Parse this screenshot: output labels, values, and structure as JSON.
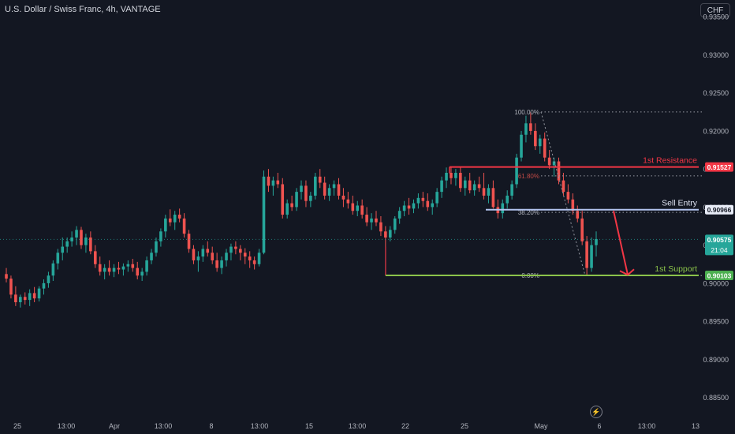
{
  "header": {
    "title": "U.S. Dollar / Swiss Franc, 4h, VANTAGE",
    "currency_button": "CHF"
  },
  "icons": {
    "replay": "lightning-icon"
  },
  "colors": {
    "background": "#131722",
    "up": "#26a69a",
    "down": "#ef5350",
    "resistance": "#f23645",
    "entry": "#b2c3ee",
    "support": "#8bc34a",
    "arrow": "#f23645"
  },
  "chart_data": {
    "type": "candlestick",
    "title": "U.S. Dollar / Swiss Franc, 4h, VANTAGE",
    "xlabel": "",
    "ylabel": "",
    "ylim": [
      0.8833,
      0.9372
    ],
    "y_ticks": [
      "0.93500",
      "0.93000",
      "0.92500",
      "0.92000",
      "0.91500",
      "0.91000",
      "0.90500",
      "0.90000",
      "0.89500",
      "0.89000",
      "0.88500"
    ],
    "x_ticks": [
      "25",
      "13:00",
      "Apr",
      "13:00",
      "8",
      "13:00",
      "15",
      "13:00",
      "22",
      "25",
      "May",
      "6",
      "13:00",
      "13"
    ],
    "grid": false,
    "levels": [
      {
        "label": "1st Resistance",
        "price": 0.91527,
        "price_label": "0.91527"
      },
      {
        "label": "Sell Entry",
        "price": 0.90966,
        "price_label": "0.90966"
      },
      {
        "label": "1st Support",
        "price": 0.90103,
        "price_label": "0.90103"
      }
    ],
    "current_price": {
      "price": 0.90575,
      "price_label": "0.90575",
      "countdown": "21:04"
    },
    "fibonacci": [
      {
        "label": "100.00%",
        "price": 0.9225
      },
      {
        "label": "61.80%",
        "price": 0.9141
      },
      {
        "label": "38.20%",
        "price": 0.9093
      },
      {
        "label": "0.00%",
        "price": 0.901
      }
    ],
    "projection": {
      "from_price": 0.9095,
      "to_price": 0.9011
    },
    "candles": [
      [
        0.9012,
        0.902,
        0.9001,
        0.9006
      ],
      [
        0.9006,
        0.901,
        0.898,
        0.8985
      ],
      [
        0.8985,
        0.8996,
        0.897,
        0.8975
      ],
      [
        0.8975,
        0.8985,
        0.8968,
        0.8982
      ],
      [
        0.8982,
        0.8988,
        0.8972,
        0.8978
      ],
      [
        0.8978,
        0.8992,
        0.897,
        0.8987
      ],
      [
        0.8987,
        0.8995,
        0.8975,
        0.898
      ],
      [
        0.898,
        0.8996,
        0.8976,
        0.8993
      ],
      [
        0.8993,
        0.9005,
        0.8985,
        0.9
      ],
      [
        0.9,
        0.9015,
        0.8994,
        0.901
      ],
      [
        0.901,
        0.903,
        0.9003,
        0.9026
      ],
      [
        0.9026,
        0.9045,
        0.9018,
        0.904
      ],
      [
        0.904,
        0.906,
        0.903,
        0.9048
      ],
      [
        0.9048,
        0.906,
        0.904,
        0.9055
      ],
      [
        0.9055,
        0.9068,
        0.9048,
        0.906
      ],
      [
        0.906,
        0.9075,
        0.905,
        0.907
      ],
      [
        0.907,
        0.9074,
        0.9045,
        0.905
      ],
      [
        0.905,
        0.9065,
        0.904,
        0.906
      ],
      [
        0.906,
        0.9068,
        0.9038,
        0.9042
      ],
      [
        0.9042,
        0.905,
        0.902,
        0.9025
      ],
      [
        0.9025,
        0.9035,
        0.901,
        0.9015
      ],
      [
        0.9015,
        0.9025,
        0.9005,
        0.902
      ],
      [
        0.902,
        0.903,
        0.901,
        0.9015
      ],
      [
        0.9015,
        0.9025,
        0.9008,
        0.902
      ],
      [
        0.902,
        0.9028,
        0.9012,
        0.9018
      ],
      [
        0.9018,
        0.9026,
        0.901,
        0.9022
      ],
      [
        0.9022,
        0.903,
        0.9015,
        0.9025
      ],
      [
        0.9025,
        0.9032,
        0.9015,
        0.902
      ],
      [
        0.902,
        0.9028,
        0.9005,
        0.901
      ],
      [
        0.901,
        0.902,
        0.9003,
        0.9015
      ],
      [
        0.9015,
        0.9035,
        0.901,
        0.903
      ],
      [
        0.903,
        0.9045,
        0.9025,
        0.904
      ],
      [
        0.904,
        0.906,
        0.9035,
        0.9055
      ],
      [
        0.9055,
        0.9072,
        0.9048,
        0.9068
      ],
      [
        0.9068,
        0.909,
        0.906,
        0.9085
      ],
      [
        0.9085,
        0.9097,
        0.9075,
        0.908
      ],
      [
        0.908,
        0.9095,
        0.907,
        0.909
      ],
      [
        0.909,
        0.9098,
        0.908,
        0.9085
      ],
      [
        0.9085,
        0.9092,
        0.906,
        0.9065
      ],
      [
        0.9065,
        0.907,
        0.904,
        0.9045
      ],
      [
        0.9045,
        0.905,
        0.9025,
        0.903
      ],
      [
        0.903,
        0.9042,
        0.9015,
        0.9035
      ],
      [
        0.9035,
        0.905,
        0.9028,
        0.9045
      ],
      [
        0.9045,
        0.9055,
        0.9035,
        0.904
      ],
      [
        0.904,
        0.9048,
        0.9025,
        0.903
      ],
      [
        0.903,
        0.904,
        0.9015,
        0.902
      ],
      [
        0.902,
        0.9035,
        0.9012,
        0.903
      ],
      [
        0.903,
        0.9045,
        0.9022,
        0.904
      ],
      [
        0.904,
        0.9052,
        0.903,
        0.9048
      ],
      [
        0.9048,
        0.9055,
        0.9038,
        0.9045
      ],
      [
        0.9045,
        0.905,
        0.903,
        0.904
      ],
      [
        0.904,
        0.9046,
        0.9025,
        0.9035
      ],
      [
        0.9035,
        0.9042,
        0.902,
        0.903
      ],
      [
        0.903,
        0.9035,
        0.9018,
        0.9025
      ],
      [
        0.9025,
        0.9045,
        0.9022,
        0.904
      ],
      [
        0.904,
        0.9148,
        0.9038,
        0.914
      ],
      [
        0.914,
        0.915,
        0.912,
        0.9128
      ],
      [
        0.9128,
        0.914,
        0.9115,
        0.9135
      ],
      [
        0.9135,
        0.9145,
        0.9125,
        0.913
      ],
      [
        0.913,
        0.9138,
        0.9085,
        0.909
      ],
      [
        0.909,
        0.911,
        0.9085,
        0.9105
      ],
      [
        0.9105,
        0.9115,
        0.9095,
        0.91
      ],
      [
        0.91,
        0.9125,
        0.9095,
        0.912
      ],
      [
        0.912,
        0.9135,
        0.911,
        0.9128
      ],
      [
        0.9128,
        0.9135,
        0.91,
        0.9108
      ],
      [
        0.9108,
        0.912,
        0.91,
        0.9115
      ],
      [
        0.9115,
        0.9145,
        0.911,
        0.914
      ],
      [
        0.914,
        0.915,
        0.9125,
        0.9132
      ],
      [
        0.9132,
        0.914,
        0.911,
        0.9115
      ],
      [
        0.9115,
        0.913,
        0.9108,
        0.9125
      ],
      [
        0.9125,
        0.9135,
        0.9115,
        0.913
      ],
      [
        0.913,
        0.9138,
        0.911,
        0.9115
      ],
      [
        0.9115,
        0.9125,
        0.91,
        0.911
      ],
      [
        0.911,
        0.912,
        0.9098,
        0.9105
      ],
      [
        0.9105,
        0.9115,
        0.909,
        0.9095
      ],
      [
        0.9095,
        0.9108,
        0.9088,
        0.9102
      ],
      [
        0.9102,
        0.911,
        0.9085,
        0.909
      ],
      [
        0.909,
        0.91,
        0.9075,
        0.908
      ],
      [
        0.908,
        0.9092,
        0.907,
        0.9085
      ],
      [
        0.9085,
        0.9095,
        0.9075,
        0.908
      ],
      [
        0.908,
        0.9088,
        0.9062,
        0.9068
      ],
      [
        0.9068,
        0.9075,
        0.901,
        0.906
      ],
      [
        0.906,
        0.9075,
        0.9055,
        0.907
      ],
      [
        0.907,
        0.9088,
        0.9065,
        0.9085
      ],
      [
        0.9085,
        0.91,
        0.9078,
        0.9095
      ],
      [
        0.9095,
        0.9108,
        0.9088,
        0.9102
      ],
      [
        0.9102,
        0.9112,
        0.909,
        0.9098
      ],
      [
        0.9098,
        0.911,
        0.9092,
        0.9105
      ],
      [
        0.9105,
        0.9118,
        0.9098,
        0.9112
      ],
      [
        0.9112,
        0.912,
        0.91,
        0.9108
      ],
      [
        0.9108,
        0.9118,
        0.9095,
        0.91
      ],
      [
        0.91,
        0.911,
        0.909,
        0.9105
      ],
      [
        0.9105,
        0.9125,
        0.91,
        0.912
      ],
      [
        0.912,
        0.914,
        0.9112,
        0.9135
      ],
      [
        0.9135,
        0.9152,
        0.9125,
        0.9145
      ],
      [
        0.9145,
        0.9153,
        0.913,
        0.9138
      ],
      [
        0.9138,
        0.915,
        0.9128,
        0.9145
      ],
      [
        0.9145,
        0.9152,
        0.912,
        0.9125
      ],
      [
        0.9125,
        0.914,
        0.9115,
        0.9135
      ],
      [
        0.9135,
        0.9145,
        0.9118,
        0.9122
      ],
      [
        0.9122,
        0.9135,
        0.9115,
        0.913
      ],
      [
        0.913,
        0.914,
        0.912,
        0.9125
      ],
      [
        0.9125,
        0.9145,
        0.911,
        0.9115
      ],
      [
        0.9115,
        0.913,
        0.9105,
        0.9125
      ],
      [
        0.9125,
        0.9135,
        0.9098,
        0.91
      ],
      [
        0.91,
        0.911,
        0.9085,
        0.9092
      ],
      [
        0.9092,
        0.911,
        0.9085,
        0.9105
      ],
      [
        0.9105,
        0.9122,
        0.9098,
        0.9115
      ],
      [
        0.9115,
        0.9135,
        0.911,
        0.913
      ],
      [
        0.913,
        0.917,
        0.9125,
        0.9165
      ],
      [
        0.9165,
        0.92,
        0.916,
        0.9195
      ],
      [
        0.9195,
        0.922,
        0.9185,
        0.921
      ],
      [
        0.921,
        0.9225,
        0.9195,
        0.92
      ],
      [
        0.92,
        0.921,
        0.9175,
        0.918
      ],
      [
        0.918,
        0.9195,
        0.917,
        0.919
      ],
      [
        0.919,
        0.9198,
        0.916,
        0.9165
      ],
      [
        0.9165,
        0.9175,
        0.915,
        0.9155
      ],
      [
        0.9155,
        0.9165,
        0.914,
        0.916
      ],
      [
        0.916,
        0.9165,
        0.913,
        0.9135
      ],
      [
        0.9135,
        0.9145,
        0.9115,
        0.912
      ],
      [
        0.912,
        0.913,
        0.9105,
        0.911
      ],
      [
        0.911,
        0.9118,
        0.909,
        0.9095
      ],
      [
        0.9095,
        0.9102,
        0.908,
        0.9085
      ],
      [
        0.9085,
        0.9095,
        0.905,
        0.9055
      ],
      [
        0.9055,
        0.9062,
        0.901,
        0.902
      ],
      [
        0.902,
        0.906,
        0.9015,
        0.905
      ],
      [
        0.905,
        0.9068,
        0.9035,
        0.9058
      ]
    ]
  }
}
